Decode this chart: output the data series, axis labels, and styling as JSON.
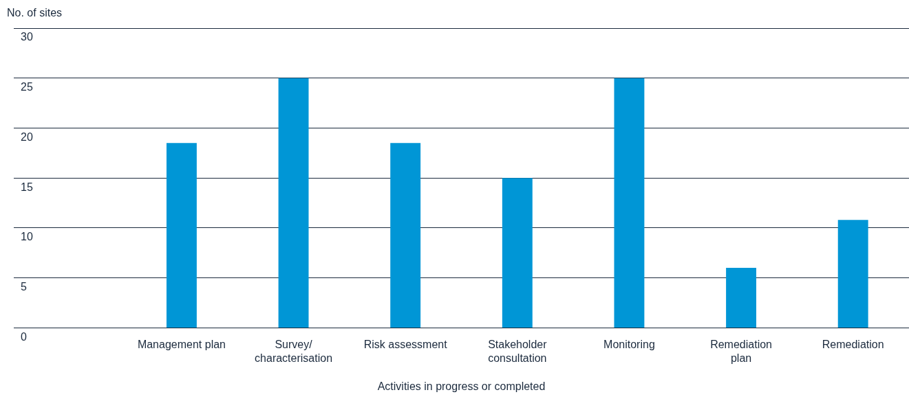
{
  "chart_data": {
    "type": "bar",
    "ylabel": "No. of sites",
    "xlabel": "Activities in progress or completed",
    "categories": [
      null,
      "Management plan",
      "Survey/\ncharacterisation",
      "Risk assessment",
      "Stakeholder\nconsultation",
      "Monitoring",
      "Remediation\nplan",
      "Remediation"
    ],
    "values": [
      null,
      18.5,
      25,
      18.5,
      15,
      25,
      6,
      10.8
    ],
    "color": "#0096d6",
    "ylim": [
      0,
      30
    ],
    "yticks": [
      0,
      5,
      10,
      15,
      20,
      25,
      30
    ],
    "grid": "y"
  }
}
